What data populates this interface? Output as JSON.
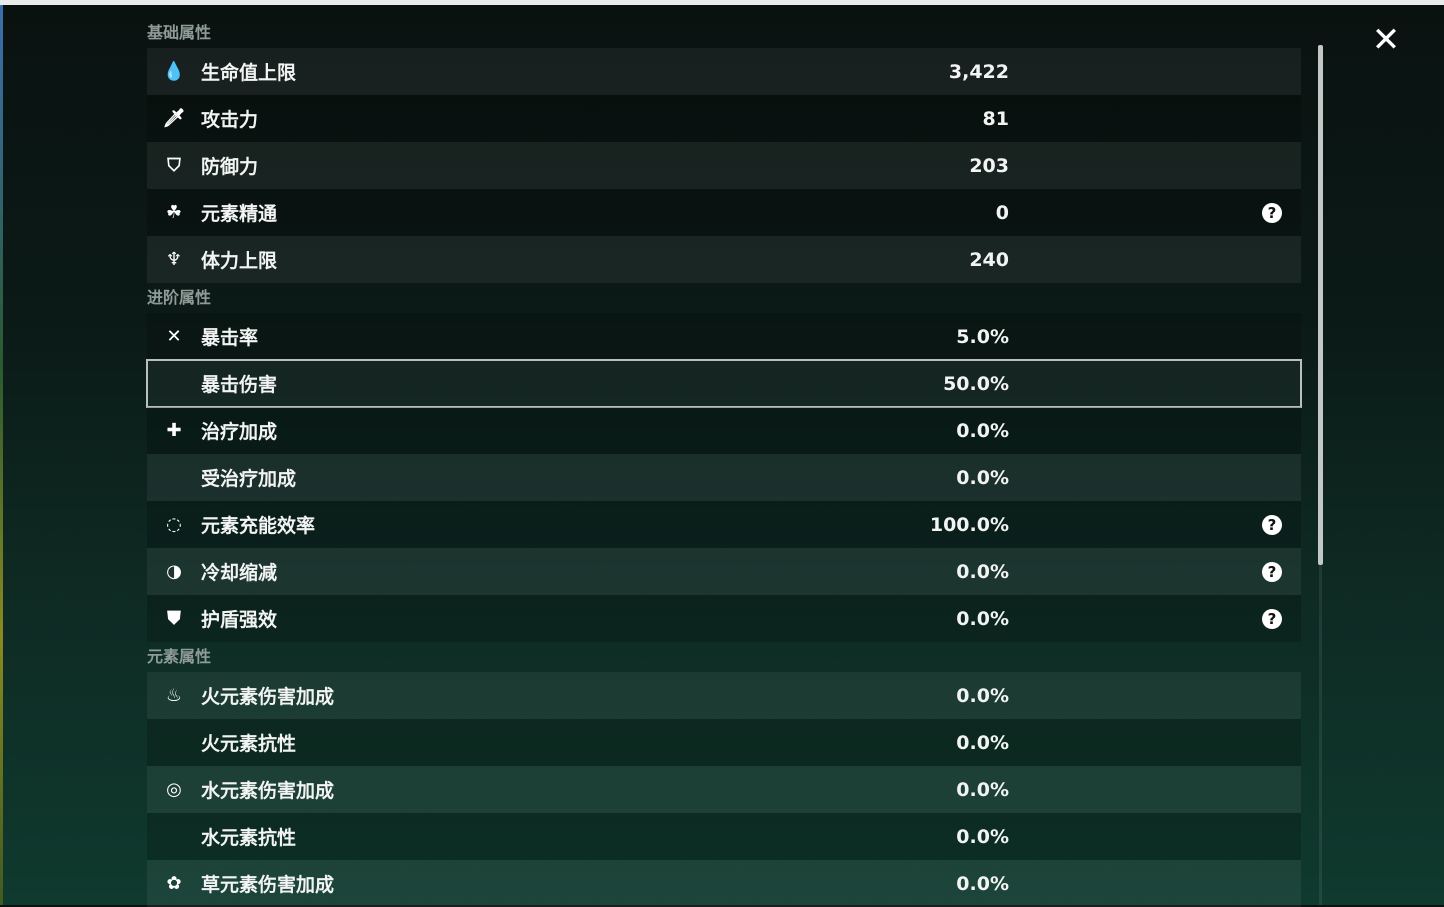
{
  "close_icon": "close-icon",
  "sections": [
    {
      "title": "基础属性",
      "rows": [
        {
          "label": "生命值上限",
          "value": "3,422",
          "icon": "hp-drop-icon",
          "glyph": "💧",
          "help": false
        },
        {
          "label": "攻击力",
          "value": "81",
          "icon": "sword-icon",
          "glyph": "🗡",
          "help": false
        },
        {
          "label": "防御力",
          "value": "203",
          "icon": "shield-icon",
          "glyph": "⛉",
          "help": false
        },
        {
          "label": "元素精通",
          "value": "0",
          "icon": "elemental-mastery-icon",
          "glyph": "☘",
          "help": true
        },
        {
          "label": "体力上限",
          "value": "240",
          "icon": "stamina-icon",
          "glyph": "♆",
          "help": false
        }
      ]
    },
    {
      "title": "进阶属性",
      "rows": [
        {
          "label": "暴击率",
          "value": "5.0%",
          "icon": "crit-rate-icon",
          "glyph": "✕",
          "help": false
        },
        {
          "label": "暴击伤害",
          "value": "50.0%",
          "icon": "crit-dmg-icon",
          "glyph": "",
          "help": false,
          "selected": true
        },
        {
          "label": "治疗加成",
          "value": "0.0%",
          "icon": "healing-cross-icon",
          "glyph": "✚",
          "help": false
        },
        {
          "label": "受治疗加成",
          "value": "0.0%",
          "icon": "",
          "glyph": "",
          "help": false
        },
        {
          "label": "元素充能效率",
          "value": "100.0%",
          "icon": "energy-recharge-icon",
          "glyph": "◌",
          "help": true
        },
        {
          "label": "冷却缩减",
          "value": "0.0%",
          "icon": "cooldown-icon",
          "glyph": "◑",
          "help": true
        },
        {
          "label": "护盾强效",
          "value": "0.0%",
          "icon": "shield-strength-icon",
          "glyph": "⛊",
          "help": true
        }
      ]
    },
    {
      "title": "元素属性",
      "rows": [
        {
          "label": "火元素伤害加成",
          "value": "0.0%",
          "icon": "pyro-icon",
          "glyph": "♨",
          "help": false
        },
        {
          "label": "火元素抗性",
          "value": "0.0%",
          "icon": "",
          "glyph": "",
          "help": false
        },
        {
          "label": "水元素伤害加成",
          "value": "0.0%",
          "icon": "hydro-icon",
          "glyph": "◎",
          "help": false
        },
        {
          "label": "水元素抗性",
          "value": "0.0%",
          "icon": "",
          "glyph": "",
          "help": false
        },
        {
          "label": "草元素伤害加成",
          "value": "0.0%",
          "icon": "dendro-icon",
          "glyph": "✿",
          "help": false
        }
      ]
    }
  ],
  "help_glyph": "?"
}
